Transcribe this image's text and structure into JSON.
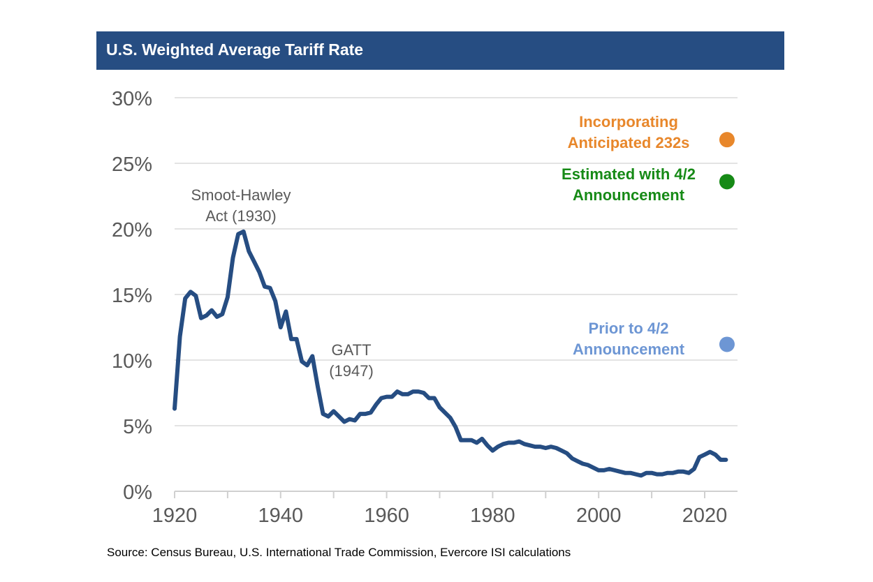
{
  "chart_data": {
    "type": "line",
    "title": "U.S. Weighted Average Tariff Rate",
    "xlabel": "",
    "ylabel": "",
    "xlim": [
      1920,
      2026
    ],
    "ylim": [
      0,
      30
    ],
    "x_ticks": [
      "1920",
      "1940",
      "1960",
      "1980",
      "2000",
      "2020"
    ],
    "y_ticks": [
      "0%",
      "5%",
      "10%",
      "15%",
      "20%",
      "25%",
      "30%"
    ],
    "grid": "horizontal",
    "line_color": "#264d82",
    "x": [
      1920,
      1921,
      1922,
      1923,
      1924,
      1925,
      1926,
      1927,
      1928,
      1929,
      1930,
      1931,
      1932,
      1933,
      1934,
      1935,
      1936,
      1937,
      1938,
      1939,
      1940,
      1941,
      1942,
      1943,
      1944,
      1945,
      1946,
      1947,
      1948,
      1949,
      1950,
      1951,
      1952,
      1953,
      1954,
      1955,
      1956,
      1957,
      1958,
      1959,
      1960,
      1961,
      1962,
      1963,
      1964,
      1965,
      1966,
      1967,
      1968,
      1969,
      1970,
      1971,
      1972,
      1973,
      1974,
      1975,
      1976,
      1977,
      1978,
      1979,
      1980,
      1981,
      1982,
      1983,
      1984,
      1985,
      1986,
      1987,
      1988,
      1989,
      1990,
      1991,
      1992,
      1993,
      1994,
      1995,
      1996,
      1997,
      1998,
      1999,
      2000,
      2001,
      2002,
      2003,
      2004,
      2005,
      2006,
      2007,
      2008,
      2009,
      2010,
      2011,
      2012,
      2013,
      2014,
      2015,
      2016,
      2017,
      2018,
      2019,
      2020,
      2021,
      2022,
      2023,
      2024
    ],
    "values": [
      6.3,
      11.8,
      14.7,
      15.2,
      14.9,
      13.2,
      13.4,
      13.8,
      13.3,
      13.5,
      14.8,
      17.8,
      19.6,
      19.8,
      18.3,
      17.5,
      16.7,
      15.6,
      15.5,
      14.5,
      12.5,
      13.7,
      11.6,
      11.6,
      9.9,
      9.6,
      10.3,
      8.0,
      5.9,
      5.7,
      6.1,
      5.7,
      5.3,
      5.5,
      5.4,
      5.9,
      5.9,
      6.0,
      6.6,
      7.1,
      7.2,
      7.2,
      7.6,
      7.4,
      7.4,
      7.6,
      7.6,
      7.5,
      7.1,
      7.1,
      6.4,
      6.0,
      5.6,
      4.9,
      3.9,
      3.9,
      3.9,
      3.7,
      4.0,
      3.5,
      3.1,
      3.4,
      3.6,
      3.7,
      3.7,
      3.8,
      3.6,
      3.5,
      3.4,
      3.4,
      3.3,
      3.4,
      3.3,
      3.1,
      2.9,
      2.5,
      2.3,
      2.1,
      2.0,
      1.8,
      1.6,
      1.6,
      1.7,
      1.6,
      1.5,
      1.4,
      1.4,
      1.3,
      1.2,
      1.4,
      1.4,
      1.3,
      1.3,
      1.4,
      1.4,
      1.5,
      1.5,
      1.4,
      1.7,
      2.6,
      2.8,
      3.0,
      2.8,
      2.4,
      2.4
    ],
    "annotations": [
      {
        "lines": [
          "Smoot-Hawley",
          "Act (1930)"
        ],
        "x": 1932
      },
      {
        "lines": [
          "GATT",
          "(1947)"
        ],
        "x": 1953
      }
    ],
    "points": [
      {
        "label_lines": [
          "Incorporating",
          "Anticipated 232s"
        ],
        "x": 2025,
        "y": 26.8,
        "color": "#e8872b"
      },
      {
        "label_lines": [
          "Estimated with 4/2",
          "Announcement"
        ],
        "x": 2025,
        "y": 23.6,
        "color": "#168a16"
      },
      {
        "label_lines": [
          "Prior to 4/2",
          "Announcement"
        ],
        "x": 2025,
        "y": 11.2,
        "color": "#6d96d4"
      }
    ],
    "source": "Source: Census Bureau, U.S. International Trade Commission, Evercore ISI calculations"
  }
}
